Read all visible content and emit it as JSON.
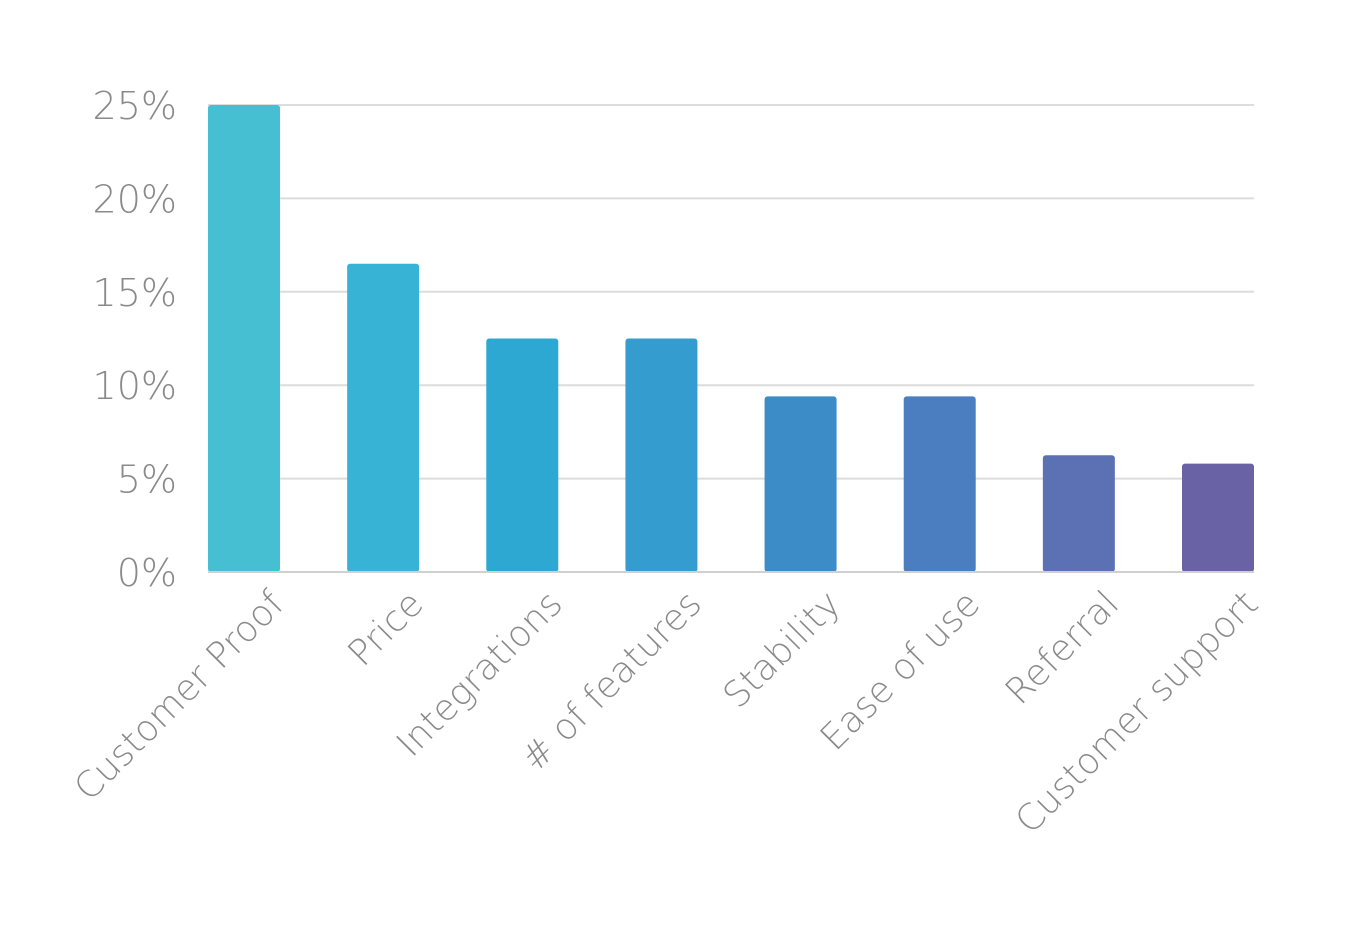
{
  "chart_data": {
    "type": "bar",
    "title": "",
    "xlabel": "",
    "ylabel": "",
    "categories": [
      "Customer Proof",
      "Price",
      "Integrations",
      "# of features",
      "Stability",
      "Ease of use",
      "Referral",
      "Customer support"
    ],
    "values": [
      25,
      16.5,
      12.5,
      12.5,
      9.4,
      9.4,
      6.25,
      5.8
    ],
    "ylim": [
      0,
      25
    ],
    "yticks": [
      {
        "value": 0,
        "label": "0%"
      },
      {
        "value": 5,
        "label": "5%"
      },
      {
        "value": 10,
        "label": "10%"
      },
      {
        "value": 15,
        "label": "15%"
      },
      {
        "value": 20,
        "label": "20%"
      },
      {
        "value": 25,
        "label": "25%"
      }
    ],
    "grid": true,
    "legend": "none",
    "colors": [
      "#45BFD1",
      "#37B3D5",
      "#2CA8D3",
      "#349CCF",
      "#3C8CC7",
      "#4B7EC0",
      "#5C70B4",
      "#6963A6"
    ],
    "gridline_color": "#DCDCDC",
    "axis_line_color": "#D0D0D0"
  }
}
